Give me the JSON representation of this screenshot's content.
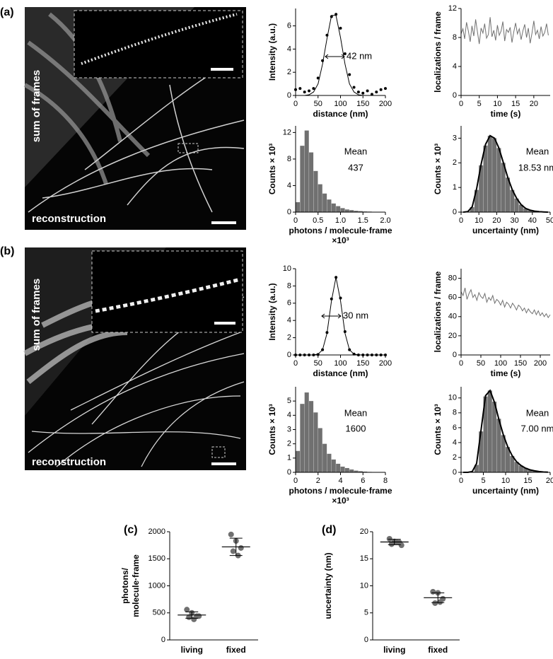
{
  "panel_labels": [
    "(a)",
    "(b)",
    "(c)",
    "(d)"
  ],
  "images": [
    {
      "top_label": "sum of frames",
      "bottom_label": "reconstruction"
    },
    {
      "top_label": "sum of frames",
      "bottom_label": "reconstruction"
    }
  ],
  "chart_data": [
    {
      "type": "line",
      "xlabel": "distance (nm)",
      "ylabel": "Intensity (a.u.)",
      "xlim": [
        0,
        200
      ],
      "xticks": [
        0,
        50,
        100,
        150,
        200
      ],
      "ylim": [
        0,
        7.5
      ],
      "yticks": [
        0,
        2,
        4,
        6
      ],
      "x": [
        0,
        10,
        20,
        30,
        40,
        50,
        60,
        70,
        80,
        90,
        100,
        110,
        120,
        130,
        140,
        150,
        160,
        170,
        180,
        190,
        200
      ],
      "series": [
        {
          "style": "markers",
          "color": "#000000",
          "values": [
            0.5,
            0.6,
            0.3,
            0.4,
            0.6,
            1.5,
            3.0,
            5.2,
            6.8,
            7.0,
            5.8,
            3.6,
            1.8,
            0.7,
            0.3,
            0.2,
            0.4,
            0.1,
            0.3,
            0.5,
            0.6
          ]
        },
        {
          "style": "line",
          "color": "#000000",
          "values": [
            0,
            0,
            0,
            0.06,
            0.3,
            1.0,
            2.7,
            4.9,
            6.9,
            6.9,
            5.0,
            2.7,
            1.0,
            0.3,
            0.06,
            0,
            0,
            0,
            0,
            0,
            0
          ]
        }
      ],
      "annotations": [
        "42 nm"
      ]
    },
    {
      "type": "line",
      "xlabel": "time (s)",
      "ylabel": "localizations / frame",
      "xlim": [
        0,
        24.5
      ],
      "xticks": [
        0,
        5,
        10,
        15,
        20
      ],
      "ylim": [
        0,
        12
      ],
      "yticks": [
        0,
        4,
        8,
        12
      ],
      "x": [
        0,
        0.5,
        1,
        1.5,
        2,
        2.5,
        3,
        3.5,
        4,
        4.5,
        5,
        5.5,
        6,
        6.5,
        7,
        7.5,
        8,
        8.5,
        9,
        9.5,
        10,
        10.5,
        11,
        11.5,
        12,
        12.5,
        13,
        13.5,
        14,
        14.5,
        15,
        15.5,
        16,
        16.5,
        17,
        17.5,
        18,
        18.5,
        19,
        19.5,
        20,
        20.5,
        21,
        21.5,
        22,
        22.5,
        23,
        23.5,
        24
      ],
      "series": [
        {
          "style": "line",
          "color": "#707070",
          "values": [
            8.5,
            9.2,
            7.8,
            10.1,
            8.9,
            7.4,
            9.6,
            8.2,
            10.5,
            8.8,
            7.1,
            9.3,
            8.6,
            9.9,
            7.9,
            8.4,
            10.8,
            8.1,
            9.0,
            7.6,
            9.7,
            8.3,
            8.9,
            10.2,
            7.5,
            9.1,
            8.7,
            9.4,
            7.3,
            8.8,
            10.0,
            8.5,
            9.2,
            7.7,
            8.9,
            9.8,
            8.0,
            9.3,
            7.2,
            8.6,
            10.3,
            8.4,
            9.0,
            7.8,
            9.5,
            8.2,
            8.7,
            9.9,
            8.3
          ]
        }
      ]
    },
    {
      "type": "histogram",
      "xlabel": [
        "photons / molecule·frame",
        "×10³"
      ],
      "ylabel": "Counts × 10³",
      "xlim": [
        0,
        2
      ],
      "xticks": [
        0,
        0.5,
        {
          "value": 1,
          "label": "1.0"
        },
        1.5,
        {
          "value": 2,
          "label": "2.0"
        }
      ],
      "ylim": [
        0,
        13
      ],
      "yticks": [
        0,
        4,
        8,
        12
      ],
      "color": "#707070",
      "bins": [
        0,
        0.1,
        0.2,
        0.3,
        0.4,
        0.5,
        0.6,
        0.7,
        0.8,
        0.9,
        1.0,
        1.1,
        1.2,
        1.3,
        1.4,
        1.5,
        1.6,
        1.7,
        1.8,
        1.9,
        2.0
      ],
      "counts": [
        1.5,
        10,
        12.3,
        9,
        6.2,
        4.2,
        2.8,
        1.9,
        1.3,
        0.9,
        0.6,
        0.4,
        0.3,
        0.2,
        0.15,
        0.1,
        0.08,
        0.05,
        0.03,
        0.02
      ],
      "annotations": [
        "Mean",
        "437"
      ]
    },
    {
      "type": "histogram",
      "xlabel": [
        "uncertainty (nm)"
      ],
      "ylabel": "Counts × 10³",
      "xlim": [
        0,
        50
      ],
      "xticks": [
        0,
        10,
        20,
        30,
        40,
        50
      ],
      "ylim": [
        0,
        3.5
      ],
      "yticks": [
        0,
        1,
        2,
        3
      ],
      "color": "#707070",
      "bins": [
        0,
        2.5,
        5,
        7.5,
        10,
        12.5,
        15,
        17.5,
        20,
        22.5,
        25,
        27.5,
        30,
        32.5,
        35,
        37.5,
        40,
        42.5,
        45,
        47.5,
        50
      ],
      "counts": [
        0,
        0.02,
        0.2,
        0.9,
        1.9,
        2.7,
        3.1,
        3.0,
        2.6,
        2.0,
        1.4,
        0.9,
        0.55,
        0.3,
        0.15,
        0.08,
        0.04,
        0.02,
        0.01,
        0
      ],
      "fit": {
        "color": "#000000",
        "x": [
          1.25,
          3.75,
          6.25,
          8.75,
          11.25,
          13.75,
          16.25,
          18.75,
          21.25,
          23.75,
          26.25,
          28.75,
          31.25,
          33.75,
          36.25,
          38.75,
          41.25,
          43.75,
          46.25,
          48.75
        ],
        "values": [
          0,
          0.02,
          0.22,
          0.95,
          1.95,
          2.75,
          3.1,
          3.0,
          2.6,
          2.0,
          1.4,
          0.9,
          0.55,
          0.3,
          0.15,
          0.08,
          0.04,
          0.02,
          0.01,
          0
        ]
      },
      "annotations": [
        "Mean",
        "18.53 nm"
      ]
    },
    {
      "type": "line",
      "xlabel": "distance (nm)",
      "ylabel": "Intensity (a.u.)",
      "xlim": [
        0,
        200
      ],
      "xticks": [
        0,
        50,
        100,
        150,
        200
      ],
      "ylim": [
        0,
        10
      ],
      "yticks": [
        0,
        2,
        4,
        6,
        8,
        10
      ],
      "x": [
        0,
        10,
        20,
        30,
        40,
        50,
        60,
        70,
        80,
        90,
        100,
        110,
        120,
        130,
        140,
        150,
        160,
        170,
        180,
        190,
        200
      ],
      "series": [
        {
          "style": "markers",
          "color": "#000000",
          "values": [
            0,
            0,
            0,
            0,
            0,
            0.05,
            0.6,
            2.6,
            6.5,
            9.0,
            6.6,
            2.7,
            0.6,
            0.1,
            0,
            0,
            0,
            0,
            0,
            0,
            0
          ]
        },
        {
          "style": "line",
          "color": "#000000",
          "values": [
            0,
            0,
            0,
            0,
            0.01,
            0.1,
            0.6,
            2.5,
            6.3,
            9.0,
            6.3,
            2.5,
            0.6,
            0.1,
            0.01,
            0,
            0,
            0,
            0,
            0,
            0
          ]
        }
      ],
      "annotations": [
        "30 nm"
      ]
    },
    {
      "type": "line",
      "xlabel": "time (s)",
      "ylabel": "localizations / frame",
      "xlim": [
        0,
        225
      ],
      "xticks": [
        0,
        50,
        100,
        150,
        200
      ],
      "ylim": [
        0,
        90
      ],
      "yticks": [
        0,
        20,
        40,
        60,
        80
      ],
      "x": [
        0,
        5,
        10,
        15,
        20,
        25,
        30,
        35,
        40,
        45,
        50,
        55,
        60,
        65,
        70,
        75,
        80,
        85,
        90,
        95,
        100,
        105,
        110,
        115,
        120,
        125,
        130,
        135,
        140,
        145,
        150,
        155,
        160,
        165,
        170,
        175,
        180,
        185,
        190,
        195,
        200,
        205,
        210,
        215,
        220,
        225
      ],
      "series": [
        {
          "style": "line",
          "color": "#707070",
          "values": [
            66,
            62,
            70,
            58,
            64,
            68,
            60,
            63,
            57,
            65,
            61,
            59,
            64,
            55,
            60,
            57,
            62,
            54,
            58,
            56,
            52,
            57,
            50,
            55,
            53,
            49,
            54,
            51,
            47,
            52,
            50,
            46,
            49,
            44,
            48,
            45,
            43,
            47,
            42,
            46,
            41,
            44,
            40,
            43,
            39,
            42
          ]
        }
      ]
    },
    {
      "type": "histogram",
      "xlabel": [
        "photons / molecule·frame",
        "×10³"
      ],
      "ylabel": "Counts × 10³",
      "xlim": [
        0,
        8
      ],
      "xticks": [
        0,
        2,
        4,
        6,
        8
      ],
      "ylim": [
        0,
        6
      ],
      "yticks": [
        0,
        1,
        2,
        3,
        4,
        5
      ],
      "color": "#707070",
      "bins": [
        0,
        0.4,
        0.8,
        1.2,
        1.6,
        2.0,
        2.4,
        2.8,
        3.2,
        3.6,
        4.0,
        4.4,
        4.8,
        5.2,
        5.6,
        6.0,
        6.4,
        6.8,
        7.2,
        7.6,
        8.0
      ],
      "counts": [
        1.5,
        4.8,
        5.6,
        5.0,
        4.2,
        3.1,
        2.0,
        1.3,
        0.9,
        0.6,
        0.4,
        0.3,
        0.2,
        0.12,
        0.08,
        0.05,
        0.03,
        0.02,
        0.01,
        0.01
      ],
      "annotations": [
        "Mean",
        "1600"
      ]
    },
    {
      "type": "histogram",
      "xlabel": [
        "uncertainty (nm)"
      ],
      "ylabel": "Counts × 10³",
      "xlim": [
        0,
        20
      ],
      "xticks": [
        0,
        5,
        10,
        15,
        20
      ],
      "ylim": [
        0,
        11.5
      ],
      "yticks": [
        0,
        2,
        4,
        6,
        8,
        10
      ],
      "color": "#707070",
      "bins": [
        0,
        1,
        2,
        3,
        4,
        5,
        6,
        7,
        8,
        9,
        10,
        11,
        12,
        13,
        14,
        15,
        16,
        17,
        18,
        19,
        20
      ],
      "counts": [
        0,
        0,
        0.1,
        1.0,
        5.5,
        10.2,
        11.0,
        9.5,
        7.2,
        5.0,
        3.4,
        2.2,
        1.4,
        0.9,
        0.6,
        0.35,
        0.2,
        0.1,
        0.05,
        0.03
      ],
      "fit": {
        "color": "#000000",
        "x": [
          0.5,
          1.5,
          2.5,
          3.5,
          4.5,
          5.5,
          6.5,
          7.5,
          8.5,
          9.5,
          10.5,
          11.5,
          12.5,
          13.5,
          14.5,
          15.5,
          16.5,
          17.5,
          18.5,
          19.5
        ],
        "values": [
          0,
          0,
          0.1,
          1.2,
          5.8,
          10.3,
          11.0,
          9.4,
          7.1,
          5.0,
          3.4,
          2.2,
          1.4,
          0.9,
          0.55,
          0.33,
          0.2,
          0.1,
          0.05,
          0.03
        ]
      },
      "annotations": [
        "Mean",
        "7.00 nm"
      ]
    },
    {
      "type": "dot",
      "ylabel": [
        "photons/",
        "molecule·frame"
      ],
      "categories": [
        "living",
        "fixed"
      ],
      "ylim": [
        0,
        2000
      ],
      "yticks": [
        0,
        500,
        1000,
        1500,
        2000
      ],
      "color": "#707070",
      "points": [
        [
          560,
          500,
          440,
          420,
          380,
          440
        ],
        [
          1950,
          1830,
          1700,
          1640,
          1560
        ]
      ],
      "means": [
        460,
        1720
      ],
      "errors": [
        60,
        160
      ]
    },
    {
      "type": "dot",
      "ylabel": [
        "uncertainty (nm)"
      ],
      "categories": [
        "living",
        "fixed"
      ],
      "ylim": [
        0,
        20
      ],
      "yticks": [
        0,
        5,
        10,
        15,
        20
      ],
      "color": "#707070",
      "points": [
        [
          18.7,
          18.2,
          18.0,
          17.7,
          18.1,
          17.5
        ],
        [
          8.9,
          8.7,
          7.6,
          6.8,
          7.0
        ]
      ],
      "means": [
        18.1,
        7.8
      ],
      "errors": [
        0.5,
        0.9
      ]
    }
  ]
}
